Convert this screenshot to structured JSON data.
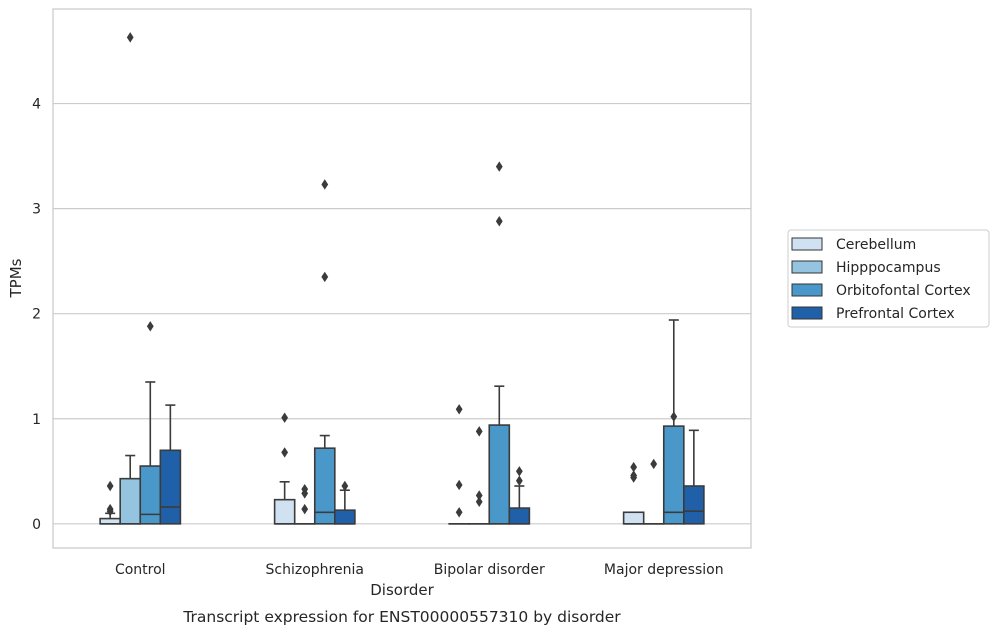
{
  "chart_data": {
    "type": "box",
    "caption": "Transcript expression for ENST00000557310 by disorder",
    "xlabel": "Disorder",
    "ylabel": "TPMs",
    "ylim": [
      -0.23,
      4.9
    ],
    "yticks": [
      0,
      1,
      2,
      3,
      4
    ],
    "grid": "horizontal",
    "legend_position": "right",
    "categories": [
      "Control",
      "Schizophrenia",
      "Bipolar disorder",
      "Major depression"
    ],
    "series": [
      {
        "name": "Cerebellum",
        "color": "#d0e1f2",
        "boxes": [
          {
            "q1": 0.0,
            "median": 0.0,
            "q3": 0.05,
            "whisker_low": 0.0,
            "whisker_high": 0.1,
            "outliers": [
              0.12,
              0.14,
              0.36
            ]
          },
          {
            "q1": 0.0,
            "median": 0.0,
            "q3": 0.23,
            "whisker_low": 0.0,
            "whisker_high": 0.4,
            "outliers": [
              0.68,
              1.01
            ]
          },
          {
            "q1": 0.0,
            "median": 0.0,
            "q3": 0.0,
            "whisker_low": 0.0,
            "whisker_high": 0.0,
            "outliers": [
              0.11,
              0.37,
              1.09
            ]
          },
          {
            "q1": 0.0,
            "median": 0.0,
            "q3": 0.11,
            "whisker_low": 0.0,
            "whisker_high": 0.11,
            "outliers": [
              0.44,
              0.46,
              0.54
            ]
          }
        ]
      },
      {
        "name": "Hipppocampus",
        "color": "#94c4df",
        "boxes": [
          {
            "q1": 0.0,
            "median": 0.0,
            "q3": 0.43,
            "whisker_low": 0.0,
            "whisker_high": 0.65,
            "outliers": [
              4.63
            ]
          },
          {
            "q1": 0.0,
            "median": 0.0,
            "q3": 0.0,
            "whisker_low": 0.0,
            "whisker_high": 0.0,
            "outliers": [
              0.14,
              0.29,
              0.33
            ]
          },
          {
            "q1": 0.0,
            "median": 0.0,
            "q3": 0.0,
            "whisker_low": 0.0,
            "whisker_high": 0.0,
            "outliers": [
              0.21,
              0.27,
              0.88
            ]
          },
          {
            "q1": 0.0,
            "median": 0.0,
            "q3": 0.0,
            "whisker_low": 0.0,
            "whisker_high": 0.0,
            "outliers": [
              0.57
            ]
          }
        ]
      },
      {
        "name": "Orbitofontal Cortex",
        "color": "#4a98c9",
        "boxes": [
          {
            "q1": 0.0,
            "median": 0.09,
            "q3": 0.55,
            "whisker_low": 0.0,
            "whisker_high": 1.35,
            "outliers": [
              1.88
            ]
          },
          {
            "q1": 0.0,
            "median": 0.11,
            "q3": 0.72,
            "whisker_low": 0.0,
            "whisker_high": 0.84,
            "outliers": [
              2.35,
              3.23
            ]
          },
          {
            "q1": 0.0,
            "median": 0.0,
            "q3": 0.94,
            "whisker_low": 0.0,
            "whisker_high": 1.31,
            "outliers": [
              2.88,
              3.4
            ]
          },
          {
            "q1": 0.0,
            "median": 0.11,
            "q3": 0.93,
            "whisker_low": 0.0,
            "whisker_high": 1.94,
            "outliers": [
              1.02
            ]
          }
        ]
      },
      {
        "name": "Prefrontal Cortex",
        "color": "#2060a8",
        "boxes": [
          {
            "q1": 0.0,
            "median": 0.16,
            "q3": 0.7,
            "whisker_low": 0.0,
            "whisker_high": 1.13,
            "outliers": []
          },
          {
            "q1": 0.0,
            "median": 0.0,
            "q3": 0.13,
            "whisker_low": 0.0,
            "whisker_high": 0.32,
            "outliers": [
              0.36
            ]
          },
          {
            "q1": 0.0,
            "median": 0.0,
            "q3": 0.15,
            "whisker_low": 0.0,
            "whisker_high": 0.36,
            "outliers": [
              0.41,
              0.5
            ]
          },
          {
            "q1": 0.0,
            "median": 0.12,
            "q3": 0.36,
            "whisker_low": 0.0,
            "whisker_high": 0.89,
            "outliers": []
          }
        ]
      }
    ]
  }
}
